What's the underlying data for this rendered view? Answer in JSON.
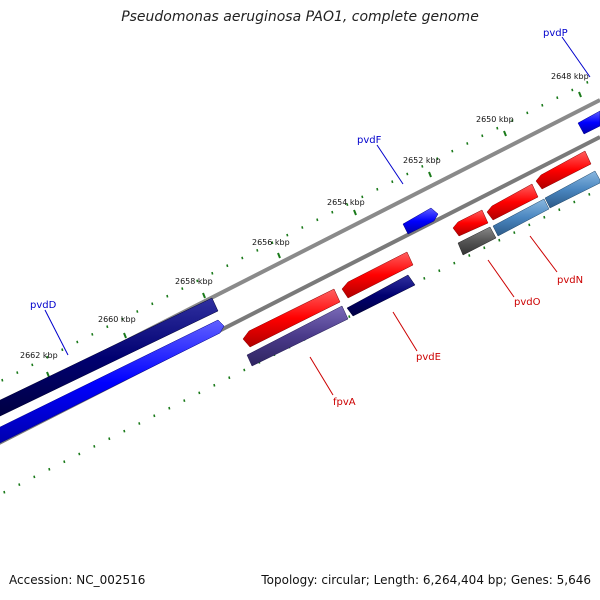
{
  "title": "Pseudomonas aeruginosa PAO1, complete genome",
  "footer": {
    "accession": "Accession: NC_002516",
    "info": "Topology: circular; Length: 6,264,404 bp; Genes: 5,646"
  },
  "ticks": [
    "2648 kbp",
    "2650 kbp",
    "2652 kbp",
    "2654 kbp",
    "2656 kbp",
    "2658 kbp",
    "2660 kbp",
    "2662 kbp"
  ],
  "gene_labels": [
    {
      "name": "pvdP",
      "color": "#0000cc"
    },
    {
      "name": "pvdF",
      "color": "#0000cc"
    },
    {
      "name": "pvdD",
      "color": "#0000cc"
    },
    {
      "name": "pvdN",
      "color": "#cc0000"
    },
    {
      "name": "pvdO",
      "color": "#cc0000"
    },
    {
      "name": "pvdE",
      "color": "#cc0000"
    },
    {
      "name": "fpvA",
      "color": "#cc0000"
    }
  ],
  "colors": {
    "backbone": "#8a8a8a",
    "tick": "#1a7a1a",
    "forward_cds": "#0000ff",
    "forward_dark": "#000066",
    "reverse_cds": "#ff0000",
    "reverse_purple": "#4a3a8a",
    "reverse_steel": "#4a86c0",
    "reverse_gray": "#555555"
  }
}
